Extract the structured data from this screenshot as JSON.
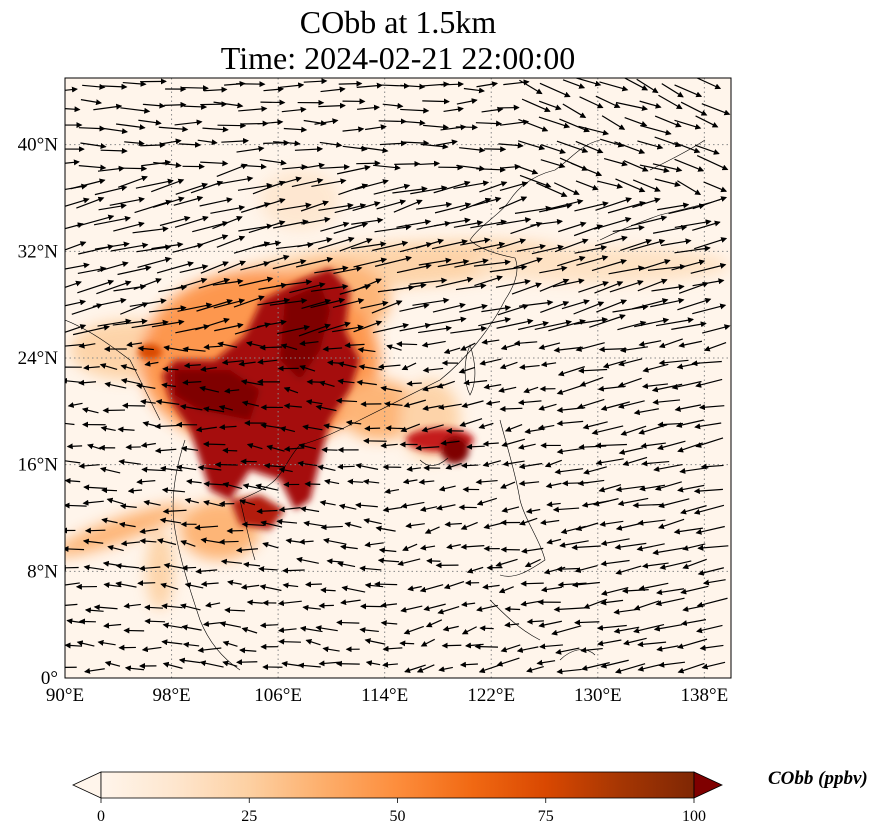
{
  "title": {
    "line1": "CObb at 1.5km",
    "line2": "Time: 2024-02-21 22:00:00"
  },
  "axes": {
    "lon_ticks": [
      "90°E",
      "98°E",
      "106°E",
      "114°E",
      "122°E",
      "130°E",
      "138°E"
    ],
    "lat_ticks": [
      "0°",
      "8°N",
      "16°N",
      "24°N",
      "32°N",
      "40°N"
    ],
    "lon_values": [
      90,
      98,
      106,
      114,
      122,
      130,
      138
    ],
    "lat_values": [
      0,
      8,
      16,
      24,
      32,
      40
    ],
    "lon_range": [
      90,
      140
    ],
    "lat_range": [
      0,
      45
    ]
  },
  "colorbar": {
    "label": "CObb (ppbv)",
    "ticks": [
      "0",
      "25",
      "50",
      "75",
      "100"
    ],
    "tick_values": [
      0,
      25,
      50,
      75,
      100
    ],
    "range": [
      0,
      100
    ],
    "colormap": [
      "#fff5eb",
      "#fee6ce",
      "#fdd0a2",
      "#fdae6b",
      "#fd8d3c",
      "#f16913",
      "#d94801",
      "#a63603",
      "#7f2704"
    ],
    "extend": "both"
  },
  "colors": {
    "background": "#fff5eb",
    "high": "#7f0000"
  }
}
